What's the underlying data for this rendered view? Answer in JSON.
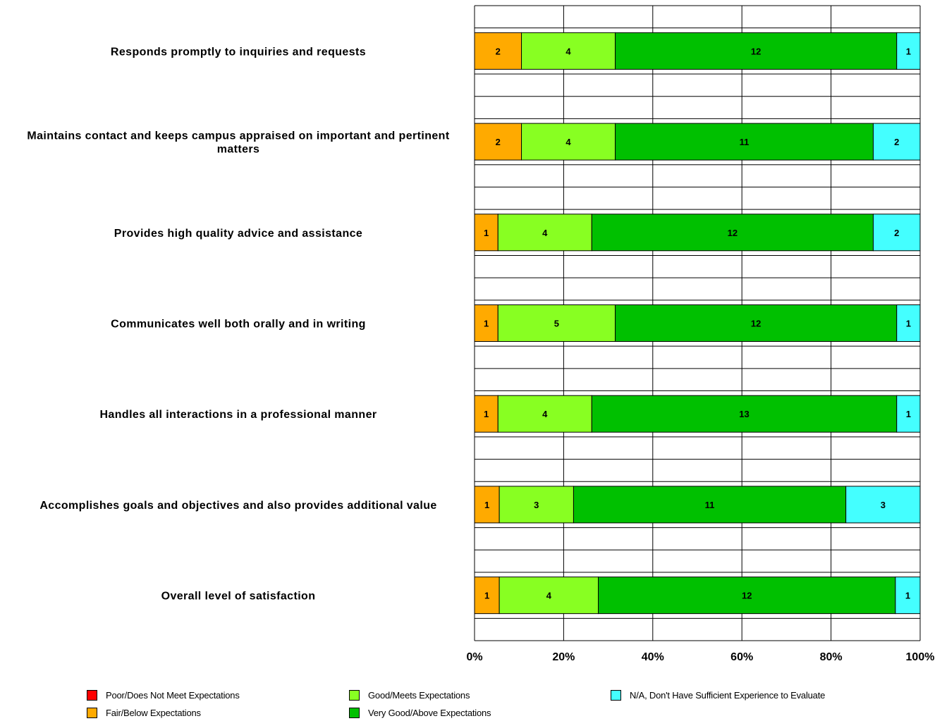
{
  "chart_data": {
    "type": "bar",
    "orientation": "horizontal",
    "stacked": "percent",
    "categories": [
      "Responds promptly to inquiries and requests",
      "Maintains contact and keeps campus appraised on important and pertinent matters",
      "Provides high quality advice and assistance",
      "Communicates well both orally and in writing",
      "Handles all interactions in a professional manner",
      "Accomplishes goals and objectives and also provides additional value",
      "Overall level of satisfaction"
    ],
    "series": [
      {
        "name": "Poor/Does Not Meet Expectations",
        "color": "#ff0000",
        "values": [
          0,
          0,
          0,
          0,
          0,
          0,
          0
        ]
      },
      {
        "name": "Fair/Below Expectations",
        "color": "#ffaa00",
        "values": [
          2,
          2,
          1,
          1,
          1,
          1,
          1
        ]
      },
      {
        "name": "Good/Meets Expectations",
        "color": "#88ff22",
        "values": [
          4,
          4,
          4,
          5,
          4,
          3,
          4
        ]
      },
      {
        "name": "Very Good/Above Expectations",
        "color": "#00c000",
        "values": [
          12,
          11,
          12,
          12,
          13,
          11,
          12
        ]
      },
      {
        "name": "N/A, Don't Have Sufficient Experience to Evaluate",
        "color": "#44ffff",
        "values": [
          1,
          2,
          2,
          1,
          1,
          3,
          1
        ]
      }
    ],
    "xticks": [
      "0%",
      "20%",
      "40%",
      "60%",
      "80%",
      "100%"
    ],
    "xlim": [
      0,
      100
    ],
    "grid": true,
    "legend_position": "bottom"
  }
}
